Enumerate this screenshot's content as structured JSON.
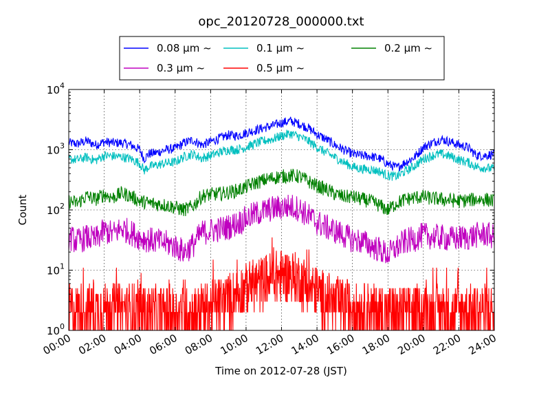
{
  "chart_data": {
    "type": "line",
    "title": "opc_20120728_000000.txt",
    "xlabel": "Time on 2012-07-28 (JST)",
    "ylabel": "Count",
    "xlim_hours": [
      0,
      24
    ],
    "x_tick_labels": [
      "00:00",
      "02:00",
      "04:00",
      "06:00",
      "08:00",
      "10:00",
      "12:00",
      "14:00",
      "16:00",
      "18:00",
      "20:00",
      "22:00",
      "24:00"
    ],
    "y_scale": "log",
    "ylim": [
      1,
      10000
    ],
    "y_ticks": [
      {
        "base": "10",
        "exp": "0"
      },
      {
        "base": "10",
        "exp": "1"
      },
      {
        "base": "10",
        "exp": "2"
      },
      {
        "base": "10",
        "exp": "3"
      },
      {
        "base": "10",
        "exp": "4"
      }
    ],
    "grid": true,
    "legend": {
      "placement": "top-center",
      "columns": 3
    },
    "series": [
      {
        "name": "0.08 μm ~",
        "color": "#0000ff",
        "x": [
          0,
          0.5,
          1,
          1.5,
          2,
          2.5,
          3,
          3.5,
          4,
          4.25,
          4.5,
          5,
          5.5,
          6,
          6.5,
          7,
          7.5,
          8,
          8.5,
          9,
          9.5,
          10,
          10.5,
          11,
          11.5,
          12,
          12.5,
          13,
          13.5,
          14,
          14.5,
          15,
          15.5,
          16,
          16.5,
          17,
          17.5,
          18,
          18.5,
          19,
          19.5,
          20,
          20.5,
          21,
          21.5,
          22,
          22.5,
          23,
          23.5,
          24
        ],
        "y": [
          1300,
          1250,
          1400,
          1200,
          1350,
          1300,
          1300,
          1200,
          1000,
          700,
          850,
          900,
          1000,
          1050,
          1300,
          1450,
          1200,
          1350,
          1550,
          1750,
          1700,
          1900,
          2100,
          2300,
          2500,
          2800,
          3000,
          2700,
          2300,
          1800,
          1500,
          1200,
          1000,
          850,
          800,
          780,
          720,
          580,
          500,
          620,
          750,
          1100,
          1300,
          1500,
          1350,
          1200,
          1100,
          800,
          800,
          850
        ]
      },
      {
        "name": "0.1 μm ~",
        "color": "#00bfbf",
        "x": [
          0,
          0.5,
          1,
          1.5,
          2,
          2.5,
          3,
          3.5,
          4,
          4.25,
          4.5,
          5,
          5.5,
          6,
          6.5,
          7,
          7.5,
          8,
          8.5,
          9,
          9.5,
          10,
          10.5,
          11,
          11.5,
          12,
          12.5,
          13,
          13.5,
          14,
          14.5,
          15,
          15.5,
          16,
          16.5,
          17,
          17.5,
          18,
          18.5,
          19,
          19.5,
          20,
          20.5,
          21,
          21.5,
          22,
          22.5,
          23,
          23.5,
          24
        ],
        "y": [
          700,
          680,
          750,
          660,
          800,
          780,
          760,
          700,
          600,
          450,
          520,
          560,
          600,
          620,
          760,
          850,
          720,
          800,
          900,
          1000,
          1000,
          1100,
          1250,
          1400,
          1500,
          1700,
          1850,
          1650,
          1400,
          1100,
          900,
          750,
          620,
          520,
          480,
          470,
          440,
          370,
          360,
          440,
          540,
          700,
          800,
          850,
          780,
          680,
          620,
          520,
          500,
          480
        ]
      },
      {
        "name": "0.2 μm ~",
        "color": "#008000",
        "x": [
          0,
          0.5,
          1,
          1.5,
          2,
          2.5,
          3,
          3.5,
          4,
          4.5,
          5,
          5.5,
          6,
          6.5,
          7,
          7.5,
          8,
          8.5,
          9,
          9.5,
          10,
          10.5,
          11,
          11.5,
          12,
          12.5,
          13,
          13.5,
          14,
          14.5,
          15,
          15.5,
          16,
          16.5,
          17,
          17.5,
          18,
          18.5,
          19,
          19.5,
          20,
          20.5,
          21,
          21.5,
          22,
          22.5,
          23,
          23.5,
          24
        ],
        "y": [
          140,
          130,
          170,
          150,
          180,
          160,
          190,
          170,
          140,
          130,
          125,
          120,
          110,
          100,
          115,
          170,
          180,
          185,
          195,
          210,
          240,
          280,
          310,
          340,
          360,
          370,
          360,
          300,
          250,
          220,
          185,
          165,
          165,
          150,
          140,
          120,
          100,
          130,
          150,
          160,
          165,
          155,
          150,
          145,
          140,
          145,
          150,
          150,
          140
        ]
      },
      {
        "name": "0.3 μm ~",
        "color": "#bf00bf",
        "x": [
          0,
          0.5,
          1,
          1.5,
          2,
          2.5,
          3,
          3.5,
          4,
          4.5,
          5,
          5.5,
          6,
          6.5,
          7,
          7.5,
          8,
          8.5,
          9,
          9.5,
          10,
          10.5,
          11,
          11.5,
          12,
          12.5,
          13,
          13.5,
          14,
          14.5,
          15,
          15.5,
          16,
          16.5,
          17,
          17.5,
          18,
          18.5,
          19,
          19.5,
          20,
          20.5,
          21,
          21.5,
          22,
          22.5,
          23,
          23.5,
          24
        ],
        "y": [
          35,
          30,
          35,
          32,
          45,
          40,
          50,
          42,
          35,
          32,
          30,
          28,
          25,
          20,
          26,
          42,
          45,
          48,
          52,
          60,
          72,
          85,
          95,
          105,
          110,
          115,
          105,
          80,
          62,
          52,
          45,
          38,
          32,
          30,
          26,
          22,
          18,
          24,
          30,
          33,
          38,
          36,
          35,
          33,
          34,
          35,
          38,
          40,
          35
        ]
      },
      {
        "name": "0.5 μm ~",
        "color": "#ff0000",
        "x": [
          0,
          1,
          2,
          3,
          4,
          5,
          6,
          7,
          8,
          8.5,
          9,
          9.5,
          10,
          10.5,
          11,
          11.5,
          12,
          12.5,
          13,
          13.5,
          14,
          15,
          16,
          17,
          18,
          19,
          20,
          21,
          22,
          23,
          24
        ],
        "y": [
          2.2,
          2.2,
          2.4,
          2.2,
          2.1,
          2.0,
          2.0,
          2.0,
          2.5,
          2.8,
          3.2,
          4.0,
          4.8,
          5.8,
          6.5,
          7.5,
          8.0,
          8.0,
          7.0,
          5.5,
          4.0,
          2.8,
          2.4,
          2.2,
          2.0,
          2.0,
          2.1,
          2.1,
          2.1,
          2.1,
          2.2
        ]
      }
    ]
  }
}
